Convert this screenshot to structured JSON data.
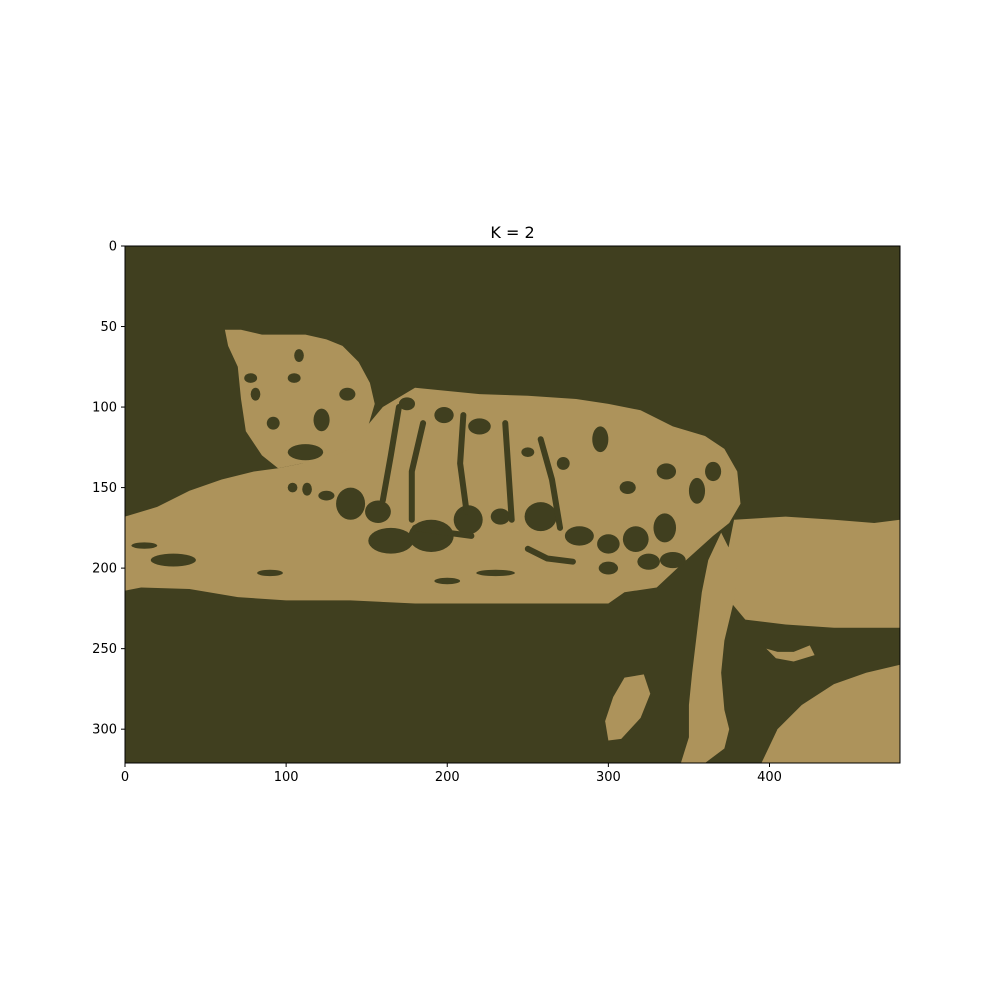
{
  "chart_data": {
    "type": "heatmap",
    "title": "K = 2",
    "xlabel": "",
    "ylabel": "",
    "xlim": [
      0,
      481
    ],
    "ylim": [
      321,
      0
    ],
    "x_ticks": [
      0,
      100,
      200,
      300,
      400
    ],
    "y_ticks": [
      0,
      50,
      100,
      150,
      200,
      250,
      300
    ],
    "grid": false,
    "clusters": 2,
    "colors": {
      "background_cluster": "#403f1f",
      "foreground_cluster": "#ad935b"
    },
    "regions": [
      {
        "cluster": 1,
        "polygon": [
          [
            0,
            168
          ],
          [
            20,
            162
          ],
          [
            40,
            152
          ],
          [
            60,
            145
          ],
          [
            80,
            140
          ],
          [
            95,
            138
          ],
          [
            110,
            135
          ],
          [
            120,
            128
          ],
          [
            150,
            112
          ],
          [
            160,
            100
          ],
          [
            180,
            88
          ],
          [
            220,
            92
          ],
          [
            250,
            93
          ],
          [
            280,
            95
          ],
          [
            300,
            98
          ],
          [
            320,
            102
          ],
          [
            340,
            112
          ],
          [
            360,
            118
          ],
          [
            372,
            126
          ],
          [
            380,
            140
          ],
          [
            382,
            160
          ],
          [
            375,
            172
          ],
          [
            365,
            180
          ],
          [
            345,
            198
          ],
          [
            330,
            212
          ],
          [
            310,
            215
          ],
          [
            300,
            222
          ],
          [
            260,
            222
          ],
          [
            220,
            222
          ],
          [
            180,
            222
          ],
          [
            140,
            220
          ],
          [
            100,
            220
          ],
          [
            70,
            218
          ],
          [
            40,
            213
          ],
          [
            10,
            212
          ],
          [
            0,
            214
          ]
        ]
      },
      {
        "cluster": 1,
        "polygon": [
          [
            62,
            52
          ],
          [
            72,
            52
          ],
          [
            85,
            55
          ],
          [
            100,
            55
          ],
          [
            112,
            55
          ],
          [
            125,
            58
          ],
          [
            135,
            62
          ],
          [
            145,
            72
          ],
          [
            152,
            85
          ],
          [
            155,
            98
          ],
          [
            150,
            115
          ],
          [
            142,
            125
          ],
          [
            130,
            130
          ],
          [
            110,
            135
          ],
          [
            95,
            138
          ],
          [
            85,
            130
          ],
          [
            75,
            115
          ],
          [
            72,
            95
          ],
          [
            70,
            75
          ],
          [
            64,
            62
          ]
        ]
      },
      {
        "cluster": 1,
        "polygon": [
          [
            378,
            170
          ],
          [
            410,
            168
          ],
          [
            440,
            170
          ],
          [
            465,
            172
          ],
          [
            481,
            170
          ],
          [
            481,
            237
          ],
          [
            440,
            237
          ],
          [
            410,
            235
          ],
          [
            385,
            232
          ],
          [
            375,
            220
          ],
          [
            372,
            200
          ]
        ]
      },
      {
        "cluster": 1,
        "polygon": [
          [
            370,
            178
          ],
          [
            380,
            198
          ],
          [
            378,
            220
          ],
          [
            372,
            245
          ],
          [
            370,
            265
          ],
          [
            372,
            288
          ],
          [
            375,
            300
          ],
          [
            372,
            312
          ],
          [
            360,
            321
          ],
          [
            345,
            321
          ],
          [
            350,
            305
          ],
          [
            350,
            285
          ],
          [
            352,
            265
          ],
          [
            355,
            240
          ],
          [
            358,
            215
          ],
          [
            362,
            195
          ]
        ]
      },
      {
        "cluster": 1,
        "polygon": [
          [
            310,
            268
          ],
          [
            322,
            266
          ],
          [
            326,
            278
          ],
          [
            320,
            293
          ],
          [
            308,
            306
          ],
          [
            300,
            307
          ],
          [
            298,
            295
          ],
          [
            303,
            280
          ]
        ]
      },
      {
        "cluster": 1,
        "polygon": [
          [
            395,
            321
          ],
          [
            405,
            300
          ],
          [
            420,
            285
          ],
          [
            440,
            272
          ],
          [
            460,
            265
          ],
          [
            481,
            260
          ],
          [
            481,
            321
          ]
        ]
      },
      {
        "cluster": 1,
        "polygon": [
          [
            398,
            250
          ],
          [
            405,
            252
          ],
          [
            415,
            252
          ],
          [
            425,
            248
          ],
          [
            428,
            254
          ],
          [
            415,
            258
          ],
          [
            404,
            256
          ]
        ]
      }
    ],
    "spots": [
      {
        "x": 125,
        "y": 155,
        "rx": 5,
        "ry": 3
      },
      {
        "x": 140,
        "y": 160,
        "rx": 9,
        "ry": 10
      },
      {
        "x": 157,
        "y": 165,
        "rx": 8,
        "ry": 7
      },
      {
        "x": 165,
        "y": 183,
        "rx": 14,
        "ry": 8
      },
      {
        "x": 190,
        "y": 180,
        "rx": 14,
        "ry": 10
      },
      {
        "x": 213,
        "y": 170,
        "rx": 9,
        "ry": 9
      },
      {
        "x": 233,
        "y": 168,
        "rx": 6,
        "ry": 5
      },
      {
        "x": 258,
        "y": 168,
        "rx": 10,
        "ry": 9
      },
      {
        "x": 282,
        "y": 180,
        "rx": 9,
        "ry": 6
      },
      {
        "x": 300,
        "y": 185,
        "rx": 7,
        "ry": 6
      },
      {
        "x": 317,
        "y": 182,
        "rx": 8,
        "ry": 8
      },
      {
        "x": 335,
        "y": 175,
        "rx": 7,
        "ry": 9
      },
      {
        "x": 340,
        "y": 195,
        "rx": 8,
        "ry": 5
      },
      {
        "x": 325,
        "y": 196,
        "rx": 7,
        "ry": 5
      },
      {
        "x": 300,
        "y": 200,
        "rx": 6,
        "ry": 4
      },
      {
        "x": 355,
        "y": 152,
        "rx": 5,
        "ry": 8
      },
      {
        "x": 365,
        "y": 140,
        "rx": 5,
        "ry": 6
      },
      {
        "x": 336,
        "y": 140,
        "rx": 6,
        "ry": 5
      },
      {
        "x": 312,
        "y": 150,
        "rx": 5,
        "ry": 4
      },
      {
        "x": 295,
        "y": 120,
        "rx": 5,
        "ry": 8
      },
      {
        "x": 272,
        "y": 135,
        "rx": 4,
        "ry": 4
      },
      {
        "x": 250,
        "y": 128,
        "rx": 4,
        "ry": 3
      },
      {
        "x": 220,
        "y": 112,
        "rx": 7,
        "ry": 5
      },
      {
        "x": 198,
        "y": 105,
        "rx": 6,
        "ry": 5
      },
      {
        "x": 175,
        "y": 98,
        "rx": 5,
        "ry": 4
      },
      {
        "x": 112,
        "y": 128,
        "rx": 11,
        "ry": 5
      },
      {
        "x": 122,
        "y": 108,
        "rx": 5,
        "ry": 7
      },
      {
        "x": 105,
        "y": 82,
        "rx": 4,
        "ry": 3
      },
      {
        "x": 92,
        "y": 110,
        "rx": 4,
        "ry": 4
      },
      {
        "x": 78,
        "y": 82,
        "rx": 4,
        "ry": 3
      },
      {
        "x": 81,
        "y": 92,
        "rx": 3,
        "ry": 4
      },
      {
        "x": 138,
        "y": 92,
        "rx": 5,
        "ry": 4
      },
      {
        "x": 108,
        "y": 68,
        "rx": 3,
        "ry": 4
      },
      {
        "x": 104,
        "y": 150,
        "rx": 3,
        "ry": 3
      },
      {
        "x": 113,
        "y": 151,
        "rx": 3,
        "ry": 4
      },
      {
        "x": 30,
        "y": 195,
        "rx": 14,
        "ry": 4
      },
      {
        "x": 12,
        "y": 186,
        "rx": 8,
        "ry": 2
      },
      {
        "x": 230,
        "y": 203,
        "rx": 12,
        "ry": 2
      },
      {
        "x": 200,
        "y": 208,
        "rx": 8,
        "ry": 2
      },
      {
        "x": 90,
        "y": 203,
        "rx": 8,
        "ry": 2
      }
    ],
    "stripes": [
      [
        [
          170,
          100
        ],
        [
          165,
          130
        ],
        [
          160,
          158
        ]
      ],
      [
        [
          185,
          110
        ],
        [
          178,
          140
        ],
        [
          178,
          170
        ]
      ],
      [
        [
          210,
          105
        ],
        [
          208,
          135
        ],
        [
          212,
          165
        ]
      ],
      [
        [
          236,
          110
        ],
        [
          238,
          140
        ],
        [
          240,
          170
        ]
      ],
      [
        [
          258,
          120
        ],
        [
          265,
          145
        ],
        [
          270,
          175
        ]
      ],
      [
        [
          250,
          188
        ],
        [
          262,
          194
        ],
        [
          278,
          196
        ]
      ],
      [
        [
          180,
          175
        ],
        [
          200,
          178
        ],
        [
          215,
          180
        ]
      ]
    ]
  }
}
